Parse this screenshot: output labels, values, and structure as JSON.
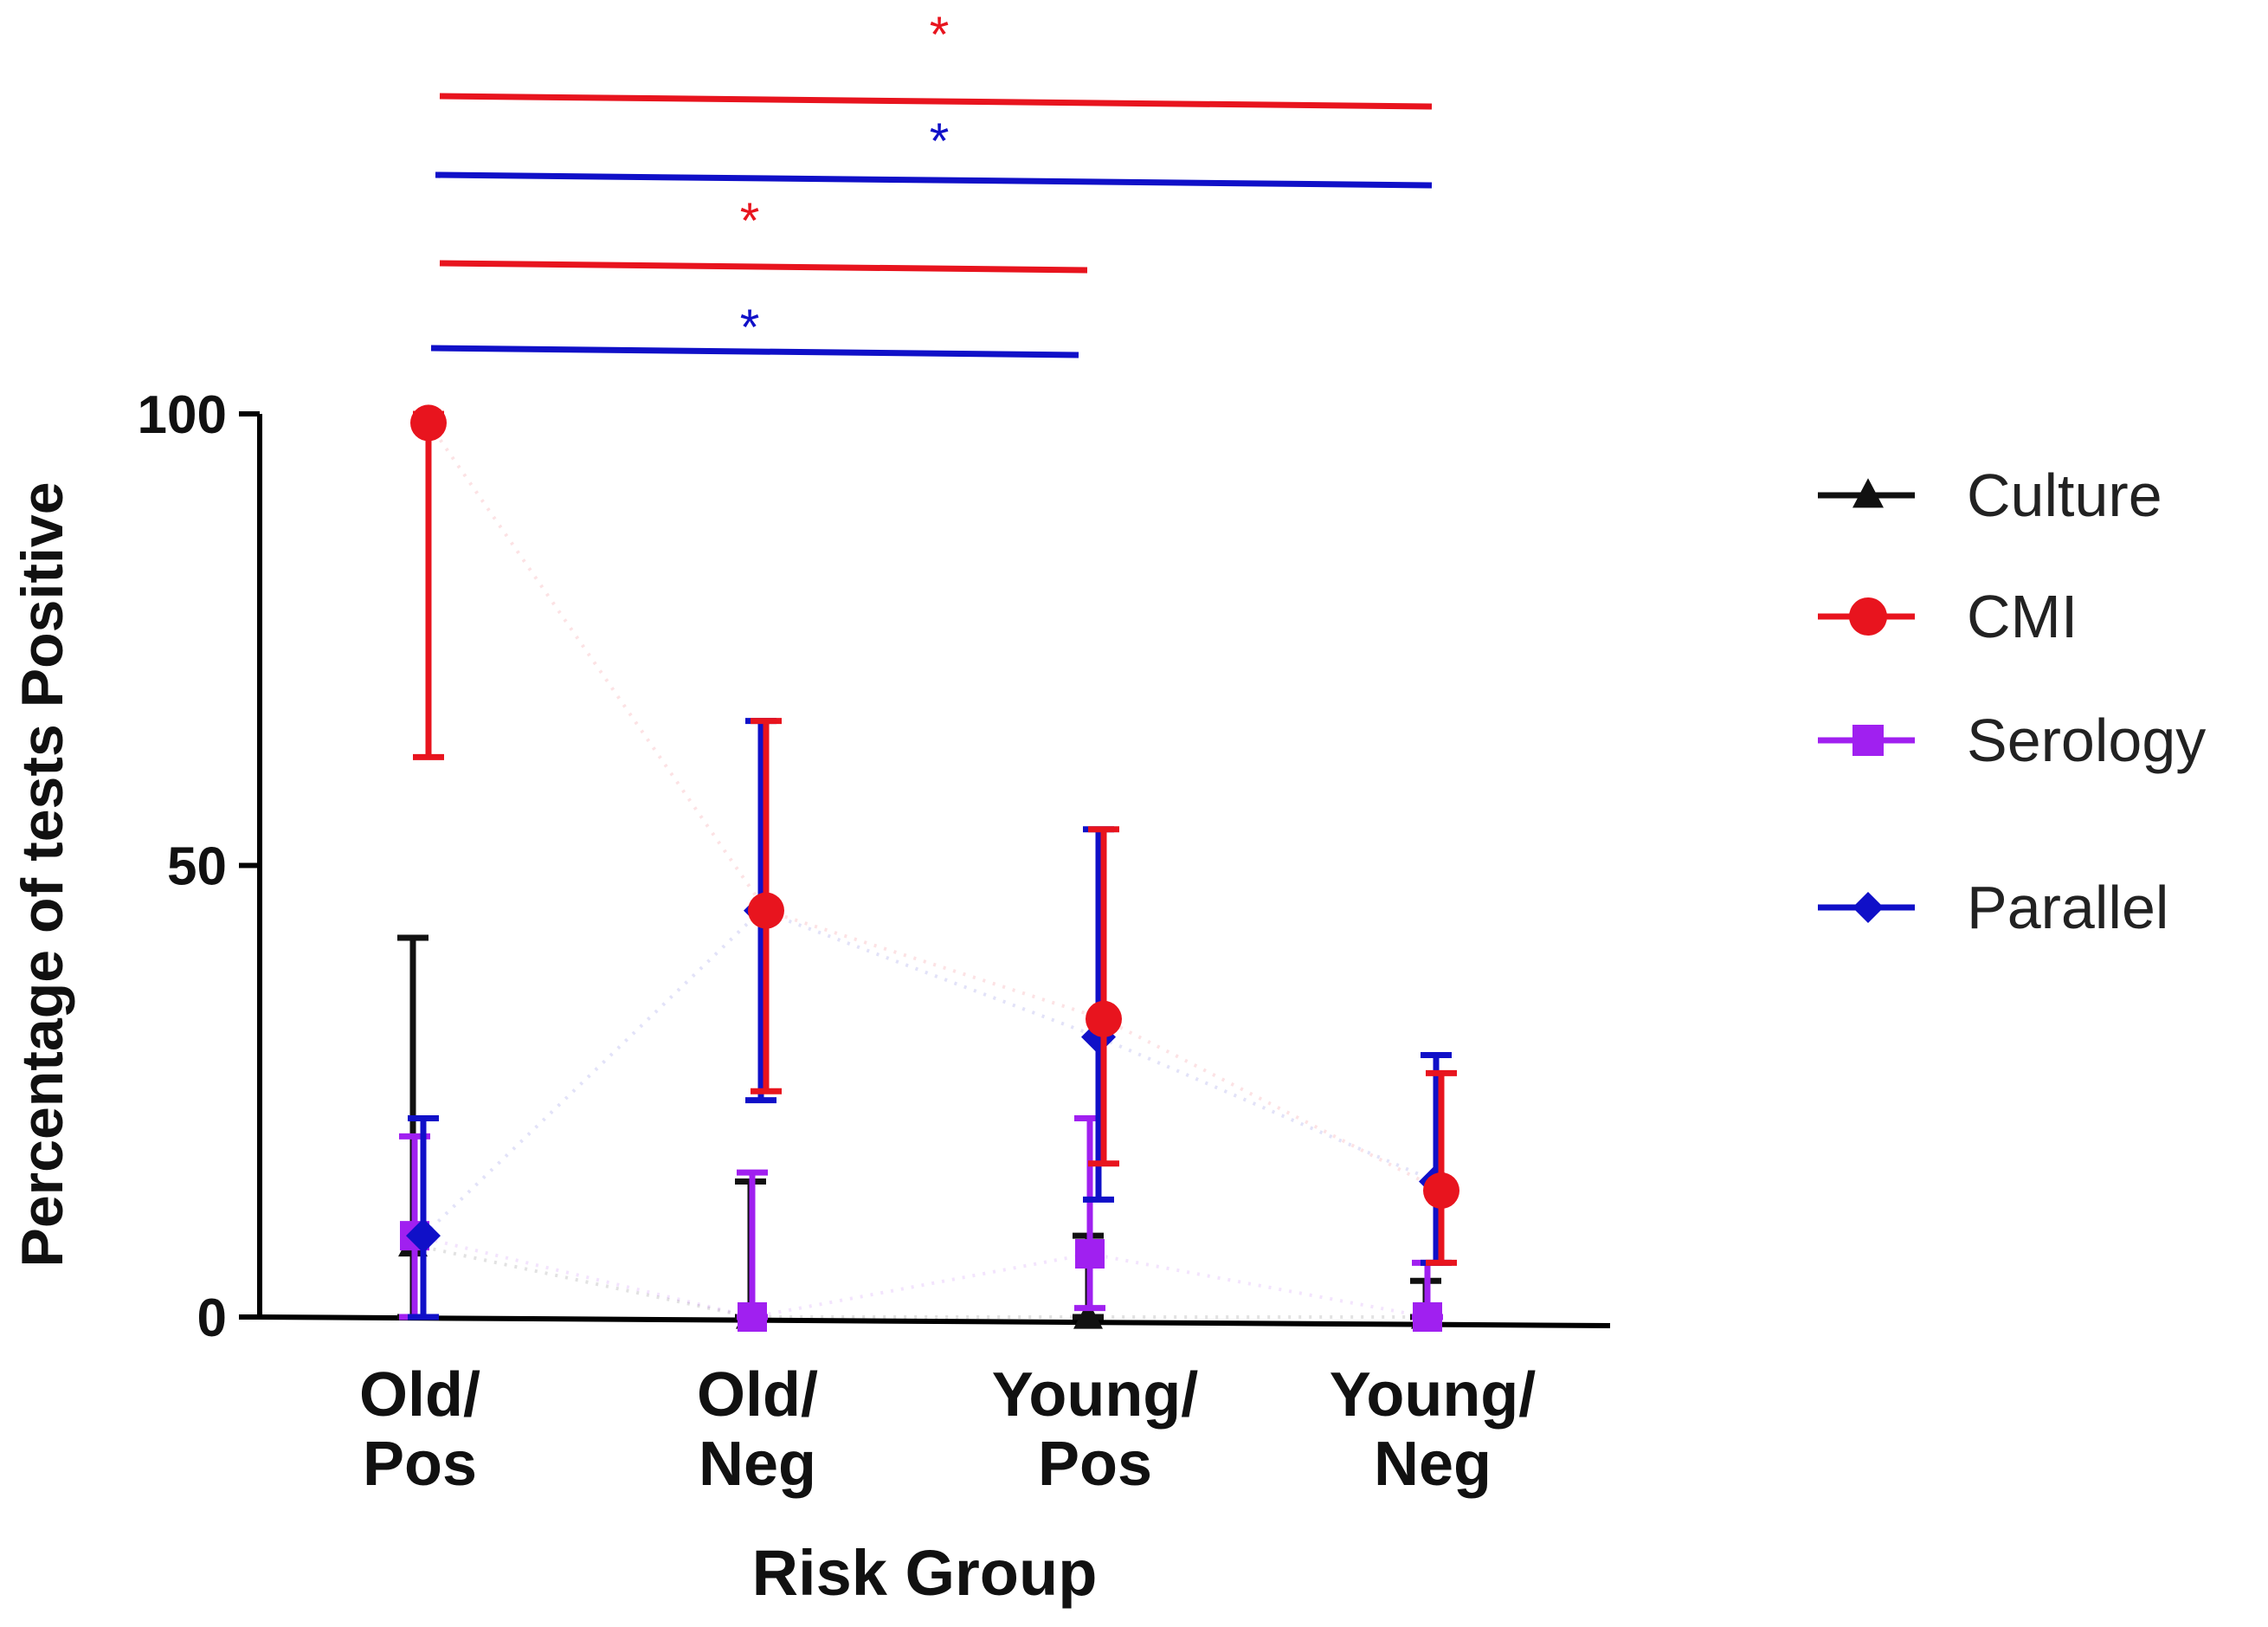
{
  "chart_data": {
    "type": "line",
    "title": "",
    "xlabel": "Risk Group",
    "ylabel": "Percentage of tests Positive",
    "ylim": [
      0,
      100
    ],
    "yticks": [
      0,
      50,
      100
    ],
    "categories": [
      [
        "Old/",
        "Pos"
      ],
      [
        "Old/",
        "Neg"
      ],
      [
        "Young/",
        "Pos"
      ],
      [
        "Young/",
        "Neg"
      ]
    ],
    "series": [
      {
        "name": "Culture",
        "marker": "triangle",
        "color": "#111111",
        "values": [
          8,
          0,
          0,
          0
        ],
        "lower": [
          0,
          0,
          0,
          0
        ],
        "upper": [
          42,
          15,
          9,
          4
        ]
      },
      {
        "name": "CMI",
        "marker": "circle",
        "color": "#e8141e",
        "values": [
          99,
          45,
          33,
          14
        ],
        "lower": [
          62,
          25,
          17,
          6
        ],
        "upper": [
          100,
          66,
          54,
          27
        ]
      },
      {
        "name": "Serology",
        "marker": "square",
        "color": "#a020f0",
        "values": [
          9,
          0,
          7,
          0
        ],
        "lower": [
          0,
          0,
          1,
          0
        ],
        "upper": [
          20,
          16,
          22,
          6
        ]
      },
      {
        "name": "Parallel",
        "marker": "diamond",
        "color": "#1010c8",
        "values": [
          9,
          45,
          31,
          15
        ],
        "lower": [
          0,
          24,
          13,
          6
        ],
        "upper": [
          22,
          66,
          54,
          29
        ]
      }
    ],
    "significance": [
      {
        "from": "Old/Pos",
        "to": "Young/Neg",
        "color": "#e8141e",
        "label": "*"
      },
      {
        "from": "Old/Pos",
        "to": "Young/Neg",
        "color": "#1010c8",
        "label": "*"
      },
      {
        "from": "Old/Pos",
        "to": "Young/Pos",
        "color": "#e8141e",
        "label": "*"
      },
      {
        "from": "Old/Pos",
        "to": "Young/Pos",
        "color": "#1010c8",
        "label": "*"
      }
    ],
    "legend_position": "right"
  }
}
